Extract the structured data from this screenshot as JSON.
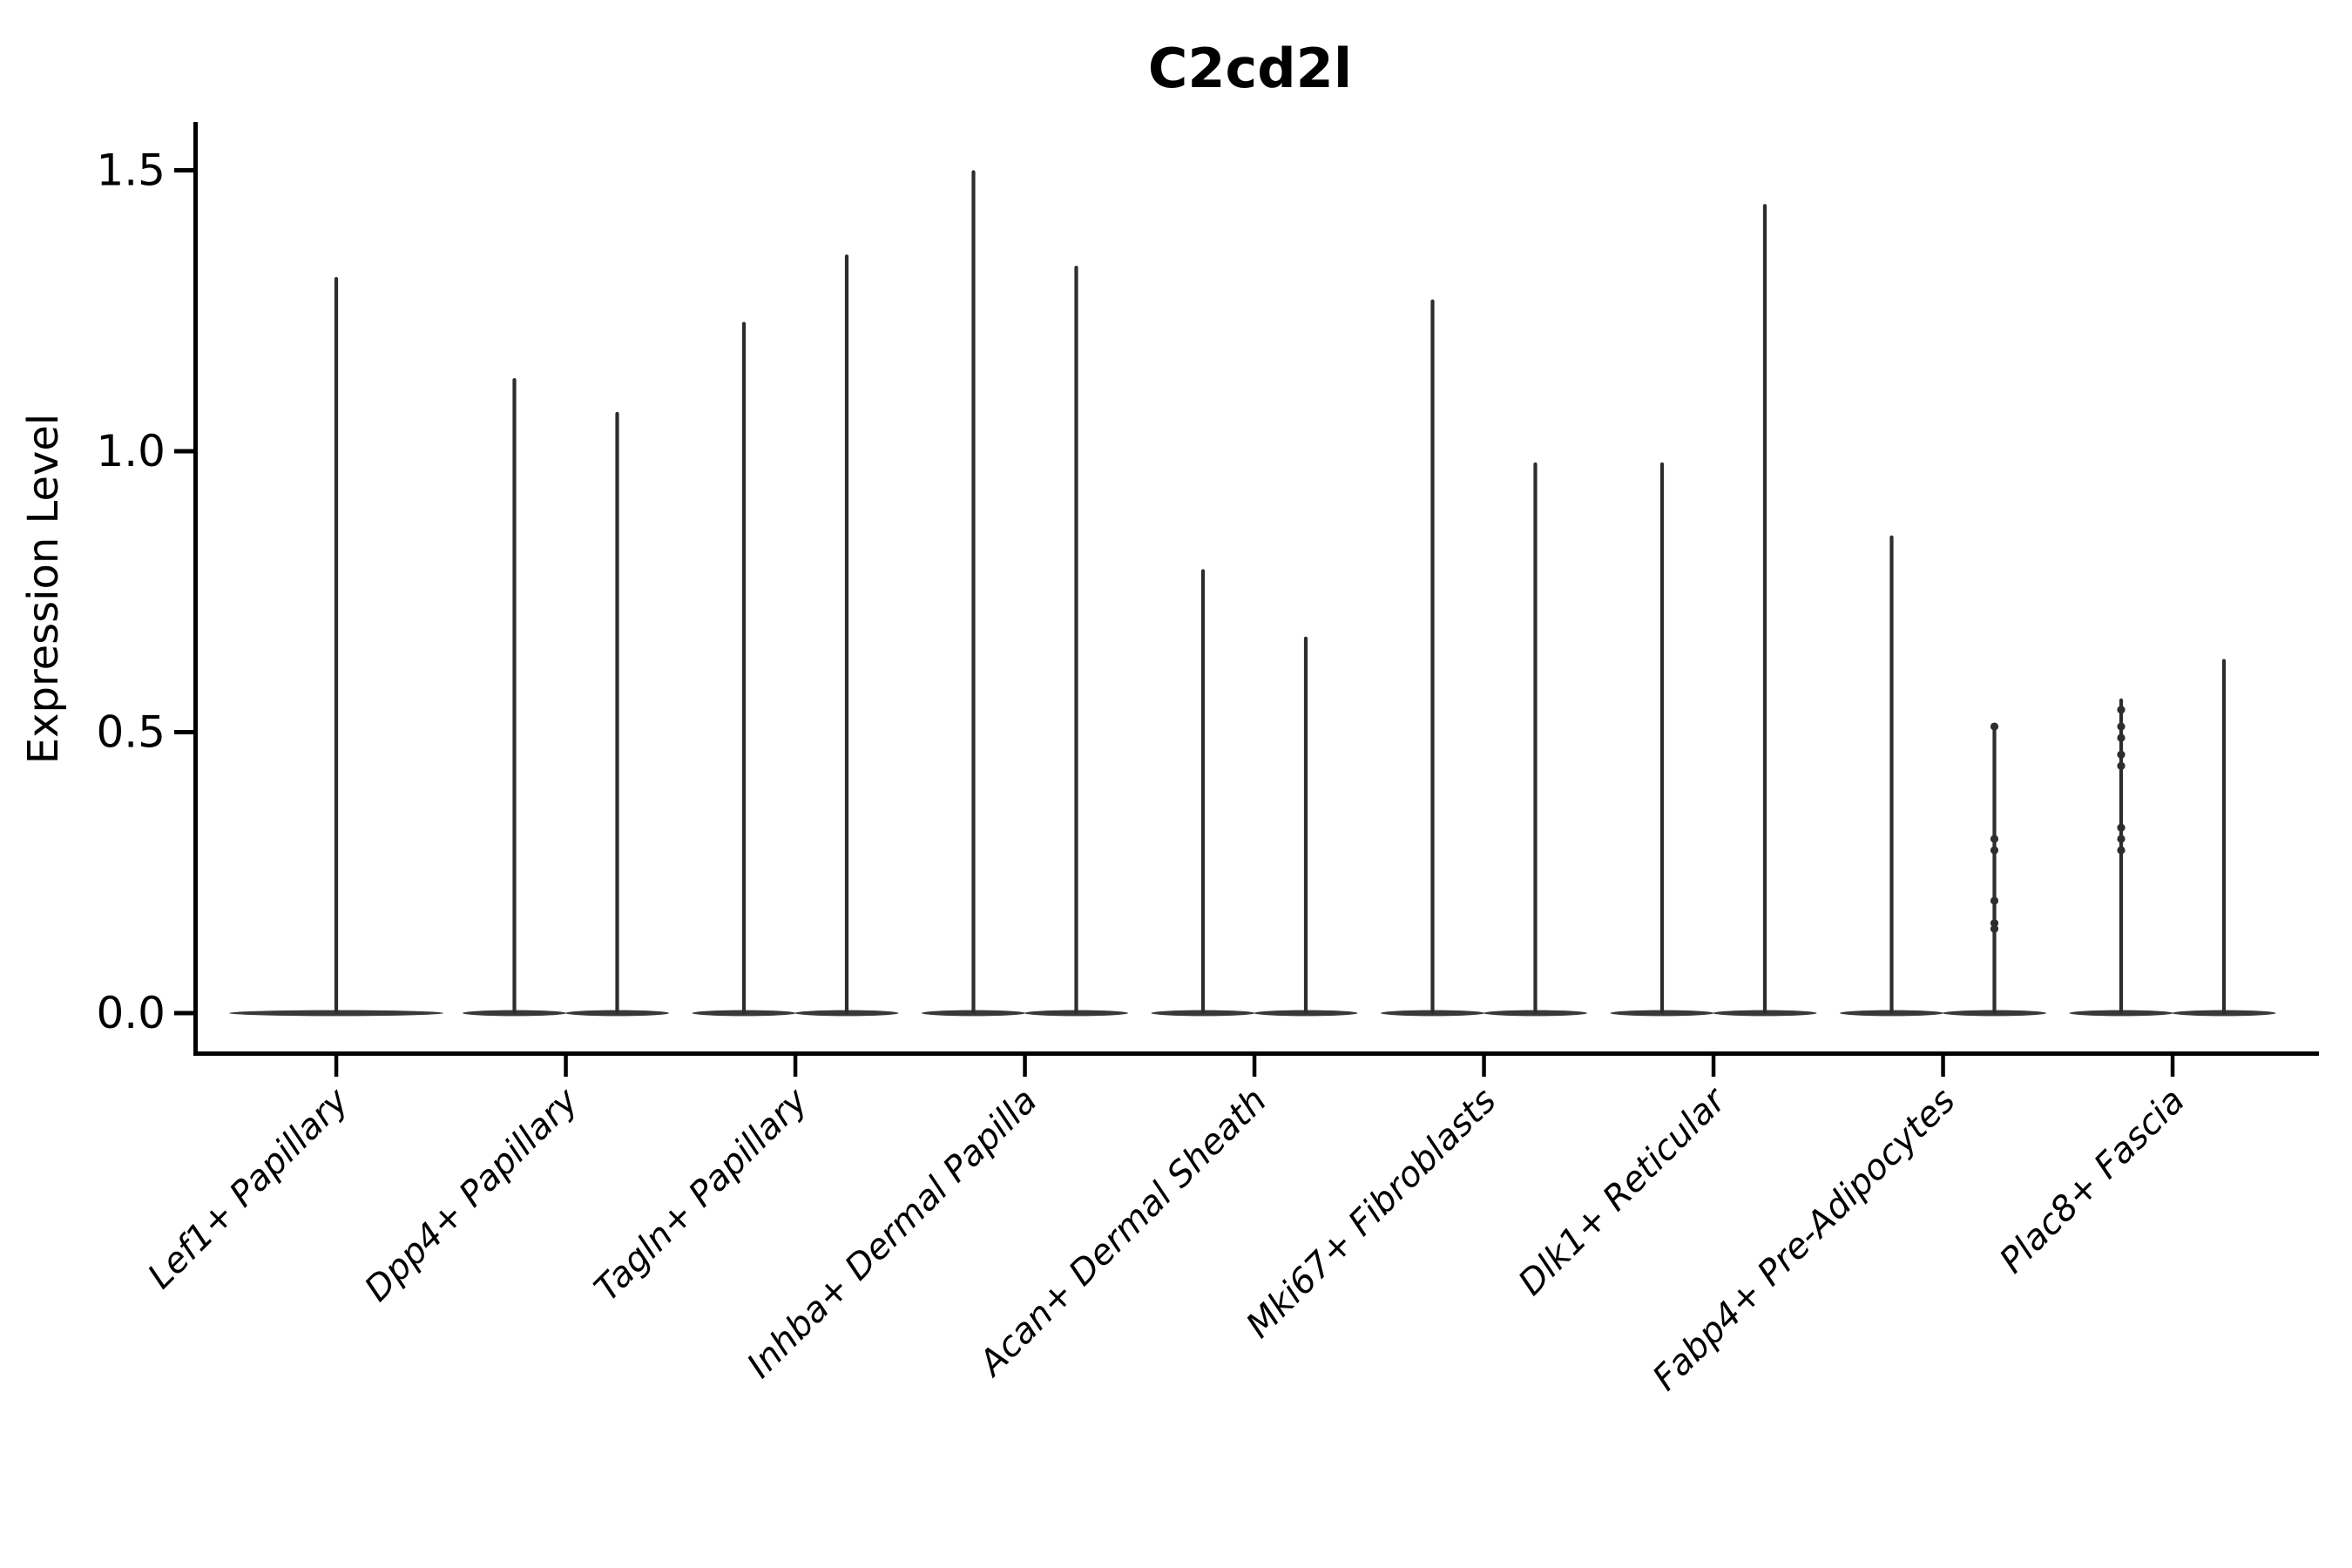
{
  "chart_data": {
    "type": "violin",
    "title": "C2cd2l",
    "ylabel": "Expression Level",
    "xlabel": "",
    "ylim": [
      -0.07,
      1.58
    ],
    "grid": false,
    "legend": null,
    "yticks": {
      "values": [
        0.0,
        0.5,
        1.0,
        1.5
      ],
      "labels": [
        "0.0",
        "0.5",
        "1.0",
        "1.5"
      ]
    },
    "categories": [
      "Lef1+ Papillary",
      "Dpp4+ Papillary",
      "Tagln+ Papillary",
      "Inhba+ Dermal Papilla",
      "Acan+ Dermal Sheath",
      "Mki67+ Fibroblasts",
      "Dlk1+ Reticular",
      "Fabp4+ Pre-Adipocytes",
      "Plac8+ Fascia"
    ],
    "violins": [
      {
        "category": "Lef1+ Papillary",
        "split": [
          {
            "side": "center",
            "max": 1.31
          }
        ]
      },
      {
        "category": "Dpp4+ Papillary",
        "split": [
          {
            "side": "left",
            "max": 1.13
          },
          {
            "side": "right",
            "max": 1.07
          }
        ]
      },
      {
        "category": "Tagln+ Papillary",
        "split": [
          {
            "side": "left",
            "max": 1.23
          },
          {
            "side": "right",
            "max": 1.35
          }
        ]
      },
      {
        "category": "Inhba+ Dermal Papilla",
        "split": [
          {
            "side": "left",
            "max": 1.5
          },
          {
            "side": "right",
            "max": 1.33
          }
        ]
      },
      {
        "category": "Acan+ Dermal Sheath",
        "split": [
          {
            "side": "left",
            "max": 0.79
          },
          {
            "side": "right",
            "max": 0.67
          }
        ]
      },
      {
        "category": "Mki67+ Fibroblasts",
        "split": [
          {
            "side": "left",
            "max": 1.27
          },
          {
            "side": "right",
            "max": 0.98
          }
        ]
      },
      {
        "category": "Dlk1+ Reticular",
        "split": [
          {
            "side": "left",
            "max": 0.98
          },
          {
            "side": "right",
            "max": 1.44
          }
        ]
      },
      {
        "category": "Fabp4+ Pre-Adipocytes",
        "split": [
          {
            "side": "left",
            "max": 0.85
          },
          {
            "side": "right",
            "max": 0.51,
            "jitter_points": [
              0.51,
              0.31,
              0.29,
              0.2,
              0.16,
              0.15
            ]
          }
        ]
      },
      {
        "category": "Plac8+ Fascia",
        "split": [
          {
            "side": "left",
            "max": 0.56,
            "jitter_points": [
              0.54,
              0.51,
              0.49,
              0.46,
              0.44,
              0.33,
              0.31,
              0.29
            ]
          },
          {
            "side": "right",
            "max": 0.63
          }
        ]
      }
    ],
    "style": {
      "violin_stroke": "#2d2d2d",
      "violin_base_fill": "#383838",
      "axis_color": "#000000",
      "background": "#ffffff"
    }
  }
}
